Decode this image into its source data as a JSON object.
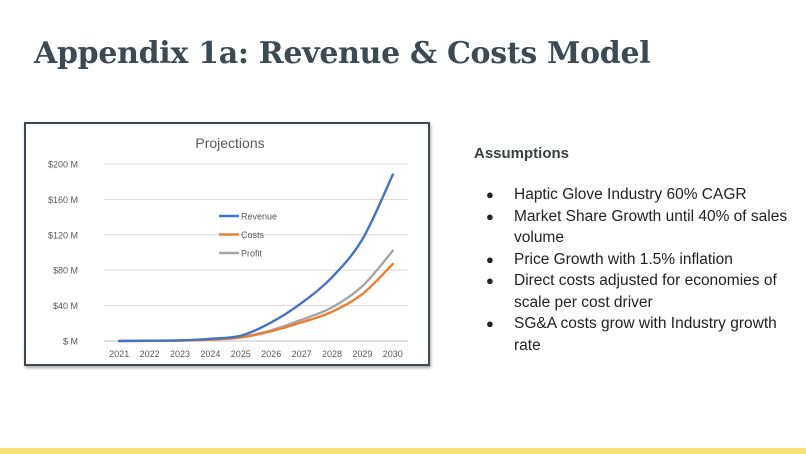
{
  "slide": {
    "title": "Appendix 1a: Revenue & Costs Model"
  },
  "assumptions": {
    "heading": "Assumptions",
    "bullet_glyph": "●",
    "items": [
      "Haptic Glove Industry 60% CAGR",
      "Market Share Growth until 40% of sales volume",
      "Price Growth with 1.5% inflation",
      "Direct costs adjusted for economies of scale per cost driver",
      "SG&A costs grow with Industry growth rate"
    ]
  },
  "colors": {
    "title": "#3c4a54",
    "footer_bar": "#f7e07a",
    "revenue": "#4472c4",
    "costs": "#ed7d31",
    "profit": "#a5a5a5",
    "gridline": "#d9d9d9",
    "tick_text": "#595959"
  },
  "chart_data": {
    "type": "line",
    "title": "Projections",
    "xlabel": "",
    "ylabel": "",
    "x": [
      "2021",
      "2022",
      "2023",
      "2024",
      "2025",
      "2026",
      "2027",
      "2028",
      "2029",
      "2030"
    ],
    "ylim": [
      0,
      200
    ],
    "yticks": [
      0,
      40,
      80,
      120,
      160,
      200
    ],
    "ytick_labels": [
      "$ M",
      "$40 M",
      "$80 M",
      "$120 M",
      "$160 M",
      "$200 M"
    ],
    "grid": true,
    "legend_position": "upper-middle",
    "series": [
      {
        "name": "Revenue",
        "color": "#4472c4",
        "values": [
          0,
          0.3,
          0.8,
          2.5,
          6,
          21,
          43,
          72,
          115,
          188
        ]
      },
      {
        "name": "Costs",
        "color": "#ed7d31",
        "values": [
          0,
          0.2,
          0.5,
          1.5,
          4,
          11,
          21,
          33,
          53,
          87
        ]
      },
      {
        "name": "Profit",
        "color": "#a5a5a5",
        "values": [
          0,
          0.2,
          0.6,
          1.8,
          4.5,
          12,
          24,
          38,
          62,
          102
        ]
      }
    ]
  }
}
